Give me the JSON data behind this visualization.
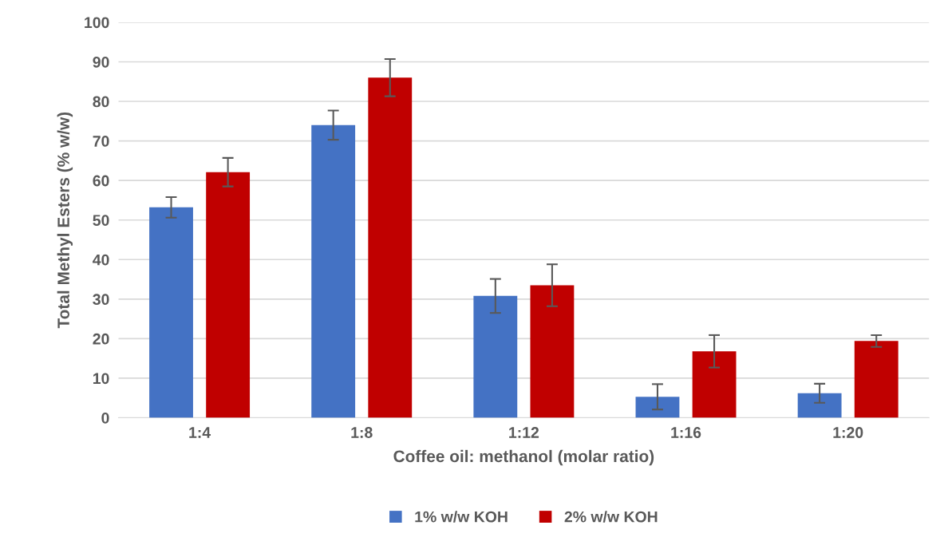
{
  "chart_data": {
    "type": "bar",
    "xlabel": "Coffee oil: methanol (molar ratio)",
    "ylabel": "Total Methyl Esters (% w/w)",
    "categories": [
      "1:4",
      "1:8",
      "1:12",
      "1:16",
      "1:20"
    ],
    "series": [
      {
        "name": "1% w/w KOH",
        "color": "#4472c4",
        "values": [
          53.2,
          74.0,
          30.8,
          5.3,
          6.2
        ],
        "errors": [
          2.6,
          3.7,
          4.3,
          3.2,
          2.4
        ]
      },
      {
        "name": "2% w/w KOH",
        "color": "#c00000",
        "values": [
          62.1,
          86.0,
          33.5,
          16.8,
          19.4
        ],
        "errors": [
          3.6,
          4.7,
          5.3,
          4.1,
          1.5
        ]
      }
    ],
    "ylim": [
      0,
      100
    ],
    "yticks": [
      0,
      10,
      20,
      30,
      40,
      50,
      60,
      70,
      80,
      90,
      100
    ],
    "grid": "y",
    "legend": "bottom"
  }
}
